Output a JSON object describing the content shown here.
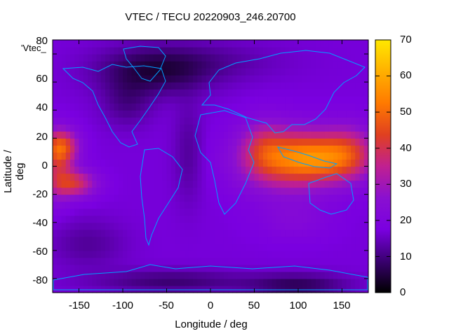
{
  "chart_data": {
    "type": "heatmap",
    "title": "VTEC / TECU 20220903_246.20700",
    "xlabel": "Longitude / deg",
    "ylabel": "Latitude / deg",
    "xlim": [
      -180,
      180
    ],
    "ylim": [
      -90,
      90
    ],
    "x_ticks": [
      "-150",
      "-100",
      "-50",
      "0",
      "50",
      "100",
      "150"
    ],
    "y_ticks": [
      "-80",
      "-60",
      "-40",
      "-20",
      "0",
      "20",
      "40",
      "60",
      "80"
    ],
    "colorbar": {
      "min": 0,
      "max": 70,
      "ticks": [
        "0",
        "10",
        "20",
        "30",
        "40",
        "50",
        "60",
        "70"
      ]
    },
    "legend_stub": "'Vtec_",
    "grid": false,
    "colormap": [
      "#000000",
      "#3a0070",
      "#7a00e0",
      "#8a10d0",
      "#c02090",
      "#e04020",
      "#ff7a00",
      "#ffb000",
      "#ffe800"
    ],
    "background_vtec": 17,
    "blobs": [
      {
        "lon": 85,
        "lat": 5,
        "slon": 38,
        "slat": 16,
        "v": 24
      },
      {
        "lon": 125,
        "lat": 6,
        "slon": 32,
        "slat": 12,
        "v": 22
      },
      {
        "lon": 160,
        "lat": 10,
        "slon": 22,
        "slat": 14,
        "v": 16
      },
      {
        "lon": 60,
        "lat": 14,
        "slon": 18,
        "slat": 14,
        "v": 10
      },
      {
        "lon": -170,
        "lat": 14,
        "slon": 14,
        "slat": 9,
        "v": 26
      },
      {
        "lon": -155,
        "lat": -12,
        "slon": 18,
        "slat": 7,
        "v": 22
      },
      {
        "lon": -175,
        "lat": -2,
        "slon": 12,
        "slat": 16,
        "v": 14
      },
      {
        "lon": -65,
        "lat": 68,
        "slon": 45,
        "slat": 12,
        "v": -11
      },
      {
        "lon": -95,
        "lat": 45,
        "slon": 20,
        "slat": 12,
        "v": -6
      },
      {
        "lon": -45,
        "lat": -82,
        "slon": 60,
        "slat": 6,
        "v": -8
      },
      {
        "lon": 100,
        "lat": -85,
        "slon": 40,
        "slat": 6,
        "v": -10
      },
      {
        "lon": 0,
        "lat": 75,
        "slon": 60,
        "slat": 10,
        "v": -4
      },
      {
        "lon": -25,
        "lat": 10,
        "slon": 12,
        "slat": 25,
        "v": -5
      },
      {
        "lon": -140,
        "lat": -55,
        "slon": 30,
        "slat": 12,
        "v": -5
      },
      {
        "lon": 95,
        "lat": -38,
        "slon": 30,
        "slat": 10,
        "v": 5
      }
    ]
  }
}
